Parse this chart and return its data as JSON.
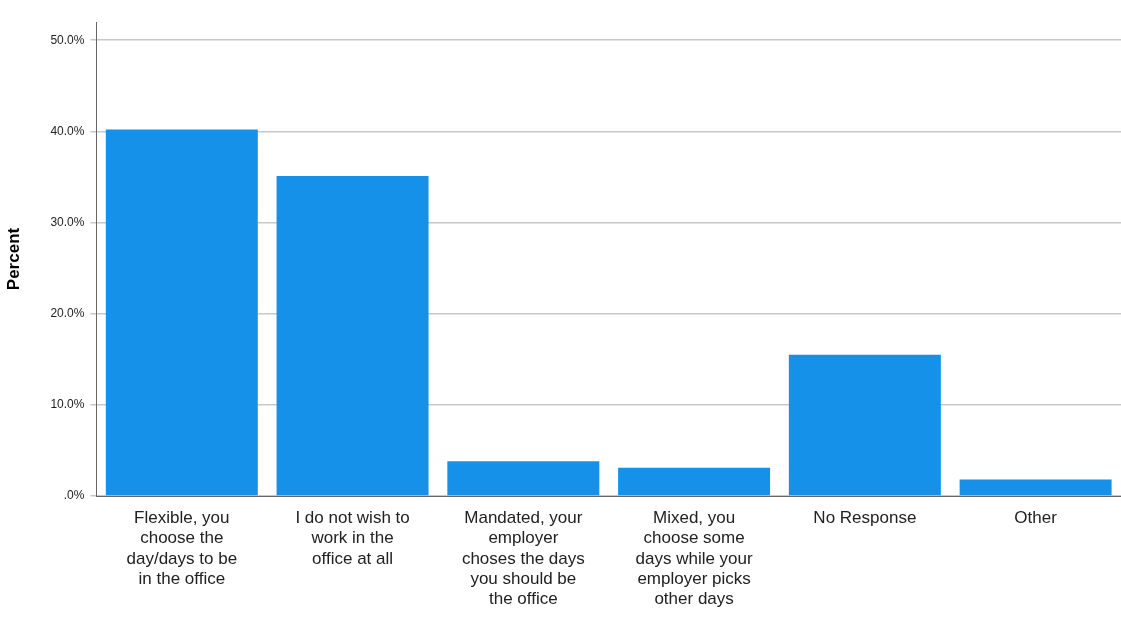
{
  "chart_data": {
    "type": "bar",
    "ylabel": "Percent",
    "categories": [
      "Flexible, you choose the day/days to be in the office",
      "I do not wish to work in the office at all",
      "Mandated, your employer choses the days you should be the office",
      "Mixed, you choose some days while your employer picks other days",
      "No Response",
      "Other"
    ],
    "values": [
      40.2,
      35.1,
      3.8,
      3.1,
      15.5,
      1.8
    ],
    "color": "#1591ea",
    "ylim": [
      0,
      52
    ],
    "yticks": [
      {
        "value": 0,
        "label": ".0%"
      },
      {
        "value": 10,
        "label": "10.0%"
      },
      {
        "value": 20,
        "label": "20.0%"
      },
      {
        "value": 30,
        "label": "30.0%"
      },
      {
        "value": 40,
        "label": "40.0%"
      },
      {
        "value": 50,
        "label": "50.0%"
      }
    ],
    "grid": "y"
  }
}
